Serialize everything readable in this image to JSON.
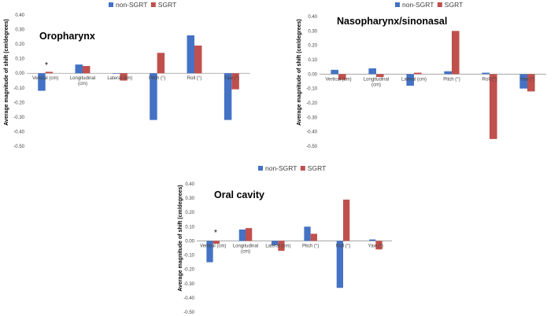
{
  "legend": {
    "items": [
      {
        "name": "non-SGRT",
        "color": "#4472C4"
      },
      {
        "name": "SGRT",
        "color": "#C0504D"
      }
    ]
  },
  "axis": {
    "ylabel": "Average magnitude of shift (cm/degrees)",
    "ticks": [
      "0.40",
      "0.30",
      "0.20",
      "0.10",
      "0.00",
      "-0.10",
      "-0.20",
      "-0.30",
      "-0.40",
      "-0.50"
    ]
  },
  "chart_data": [
    {
      "type": "bar",
      "title": "Oropharynx",
      "ylabel": "Average magnitude of shift (cm/degrees)",
      "ylim": [
        -0.5,
        0.4
      ],
      "categories": [
        "Vertical (cm)",
        "Longitudinal (cm)",
        "Lateral (cm)",
        "Pitch (°)",
        "Roll (°)",
        "Yaw (°)"
      ],
      "category_lines": [
        [
          "Vertical (cm)"
        ],
        [
          "Longitudinal",
          "(cm)"
        ],
        [
          "Lateral (cm)"
        ],
        [
          "Pitch (°)"
        ],
        [
          "Roll (°)"
        ],
        [
          "Yaw (°)"
        ]
      ],
      "series": [
        {
          "name": "non-SGRT",
          "values": [
            -0.12,
            0.06,
            0.0,
            -0.32,
            0.26,
            -0.32
          ]
        },
        {
          "name": "SGRT",
          "values": [
            0.01,
            0.05,
            -0.05,
            0.14,
            0.19,
            -0.11
          ]
        }
      ],
      "annotation": {
        "text": "*",
        "category": "Vertical (cm)"
      }
    },
    {
      "type": "bar",
      "title": "Nasopharynx/sinonasal",
      "ylabel": "Average magnitude of shift (cm/degrees)",
      "ylim": [
        -0.5,
        0.4
      ],
      "categories": [
        "Vertical (cm)",
        "Longitudinal (cm)",
        "Lateral (cm)",
        "Pitch (°)",
        "Roll (°)",
        "Yaw (°)"
      ],
      "category_lines": [
        [
          "Vertical (cm)"
        ],
        [
          "Longitudinal",
          "(cm)"
        ],
        [
          "Lateral (cm)"
        ],
        [
          "Pitch (°)"
        ],
        [
          "Roll (°)"
        ],
        [
          "Yaw (°)"
        ]
      ],
      "series": [
        {
          "name": "non-SGRT",
          "values": [
            0.03,
            0.04,
            -0.08,
            0.02,
            0.01,
            -0.1
          ]
        },
        {
          "name": "SGRT",
          "values": [
            -0.04,
            -0.02,
            0.01,
            0.3,
            -0.45,
            -0.12
          ]
        }
      ]
    },
    {
      "type": "bar",
      "title": "Oral cavity",
      "ylabel": "Average magnitude of shift (cm/degrees)",
      "ylim": [
        -0.5,
        0.4
      ],
      "categories": [
        "Vertical (cm)",
        "Longitudinal (cm)",
        "Lateral (cm)",
        "Pitch (°)",
        "Roll (°)",
        "Yaw (°)"
      ],
      "category_lines": [
        [
          "Vertical (cm)"
        ],
        [
          "Longitudinal",
          "(cm)"
        ],
        [
          "Lateral (cm)"
        ],
        [
          "Pitch (°)"
        ],
        [
          "Roll (°)"
        ],
        [
          "Yaw (°)"
        ]
      ],
      "series": [
        {
          "name": "non-SGRT",
          "values": [
            -0.15,
            0.08,
            -0.03,
            0.1,
            -0.33,
            0.01
          ]
        },
        {
          "name": "SGRT",
          "values": [
            -0.02,
            0.09,
            -0.07,
            0.05,
            0.29,
            -0.06
          ]
        }
      ],
      "annotation": {
        "text": "*",
        "category": "Vertical (cm)"
      }
    }
  ]
}
